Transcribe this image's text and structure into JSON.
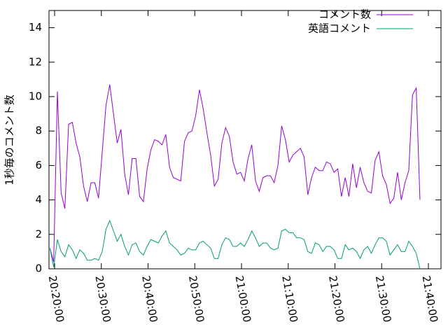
{
  "chart_data": {
    "type": "line",
    "ylabel": "1秒毎のコメント数",
    "x": [
      1219,
      1219.8,
      1220.6,
      1221.4,
      1222.2,
      1223,
      1223.8,
      1224.6,
      1225.4,
      1226.2,
      1227,
      1227.8,
      1228.6,
      1229.4,
      1230.2,
      1231,
      1231.8,
      1232.6,
      1233.4,
      1234.2,
      1235,
      1235.8,
      1236.6,
      1237.4,
      1238.2,
      1239,
      1239.8,
      1240.6,
      1241.4,
      1242.2,
      1243,
      1243.8,
      1244.6,
      1245.4,
      1246.2,
      1247,
      1247.8,
      1248.6,
      1249.4,
      1250.2,
      1251,
      1251.8,
      1252.6,
      1253.4,
      1254.2,
      1255,
      1255.8,
      1256.6,
      1257.4,
      1258.2,
      1259,
      1259.8,
      1260.6,
      1261.4,
      1262.2,
      1263,
      1263.8,
      1264.6,
      1265.4,
      1266.2,
      1267,
      1267.8,
      1268.6,
      1269.4,
      1270.2,
      1271,
      1271.8,
      1272.6,
      1273.4,
      1274.2,
      1275,
      1275.8,
      1276.6,
      1277.4,
      1278.2,
      1279,
      1279.8,
      1280.6,
      1281.4,
      1282.2,
      1283,
      1283.8,
      1284.6,
      1285.4,
      1286.2,
      1287,
      1287.8,
      1288.6,
      1289.4,
      1290.2,
      1291,
      1291.8,
      1292.6,
      1293.4,
      1294.2,
      1295,
      1295.8,
      1296.6,
      1297.4,
      1298.2
    ],
    "series": [
      {
        "name": "コメント数",
        "color": "#9400d3",
        "values": [
          1.2,
          0.4,
          10.3,
          4.4,
          3.5,
          8.4,
          8.5,
          7.3,
          6.5,
          4.8,
          3.9,
          5.0,
          5.0,
          4.1,
          6.8,
          9.5,
          10.7,
          9.0,
          7.3,
          8.1,
          5.5,
          4.3,
          6.4,
          6.4,
          4.2,
          3.9,
          5.8,
          6.9,
          7.5,
          7.4,
          7.2,
          7.8,
          5.9,
          5.3,
          5.2,
          5.1,
          7.4,
          7.9,
          8.0,
          8.9,
          10.4,
          9.3,
          7.9,
          6.6,
          4.8,
          5.2,
          7.3,
          8.2,
          7.7,
          6.2,
          5.5,
          5.6,
          5.1,
          6.4,
          7.2,
          5.1,
          4.5,
          5.3,
          5.4,
          5.4,
          5.0,
          6.0,
          8.3,
          7.5,
          6.2,
          6.6,
          6.8,
          7.0,
          6.5,
          4.3,
          5.3,
          5.9,
          5.7,
          5.7,
          6.2,
          6.1,
          5.6,
          5.8,
          4.2,
          5.3,
          4.2,
          6.1,
          4.7,
          5.9,
          5.0,
          4.5,
          4.4,
          6.3,
          6.8,
          5.4,
          4.9,
          3.8,
          4.1,
          5.6,
          4.0,
          5.0,
          5.7,
          10.1,
          10.5,
          4.0
        ]
      },
      {
        "name": "英語コメント",
        "color": "#009e73",
        "values": [
          1.2,
          0.1,
          1.7,
          1.0,
          0.7,
          1.4,
          1.1,
          0.6,
          1.1,
          0.9,
          0.5,
          0.5,
          0.6,
          0.5,
          1.0,
          2.3,
          2.8,
          2.2,
          1.6,
          2.0,
          1.3,
          0.8,
          1.4,
          1.5,
          1.0,
          0.8,
          1.3,
          1.7,
          1.6,
          1.5,
          1.9,
          2.2,
          1.5,
          1.3,
          1.1,
          0.8,
          0.9,
          1.2,
          1.1,
          1.1,
          1.5,
          1.6,
          1.4,
          1.2,
          0.6,
          0.6,
          1.4,
          1.8,
          1.7,
          1.3,
          1.3,
          1.5,
          1.3,
          1.7,
          2.2,
          1.8,
          1.3,
          1.5,
          1.5,
          1.2,
          1.1,
          1.2,
          2.2,
          2.3,
          2.1,
          2.1,
          1.8,
          1.8,
          1.7,
          1.0,
          0.9,
          1.5,
          1.4,
          1.0,
          1.3,
          1.3,
          1.1,
          0.6,
          0.6,
          1.4,
          1.1,
          1.2,
          1.0,
          0.6,
          1.1,
          1.3,
          0.9,
          1.4,
          1.8,
          1.8,
          1.6,
          0.8,
          1.1,
          1.4,
          1.0,
          1.0,
          1.6,
          1.3,
          0.9,
          0.0
        ]
      }
    ],
    "xlim": [
      1218.8,
      1302.7
    ],
    "xticks": [
      {
        "value": 1220,
        "label": "20:20:00"
      },
      {
        "value": 1230,
        "label": "20:30:00"
      },
      {
        "value": 1240,
        "label": "20:40:00"
      },
      {
        "value": 1250,
        "label": "20:50:00"
      },
      {
        "value": 1260,
        "label": "21:00:00"
      },
      {
        "value": 1270,
        "label": "21:10:00"
      },
      {
        "value": 1280,
        "label": "21:20:00"
      },
      {
        "value": 1290,
        "label": "21:30:00"
      },
      {
        "value": 1300,
        "label": "21:40:00"
      }
    ],
    "ylim": [
      0,
      15
    ],
    "yticks": [
      0,
      2,
      4,
      6,
      8,
      10,
      12,
      14
    ],
    "legend": "top-right"
  }
}
